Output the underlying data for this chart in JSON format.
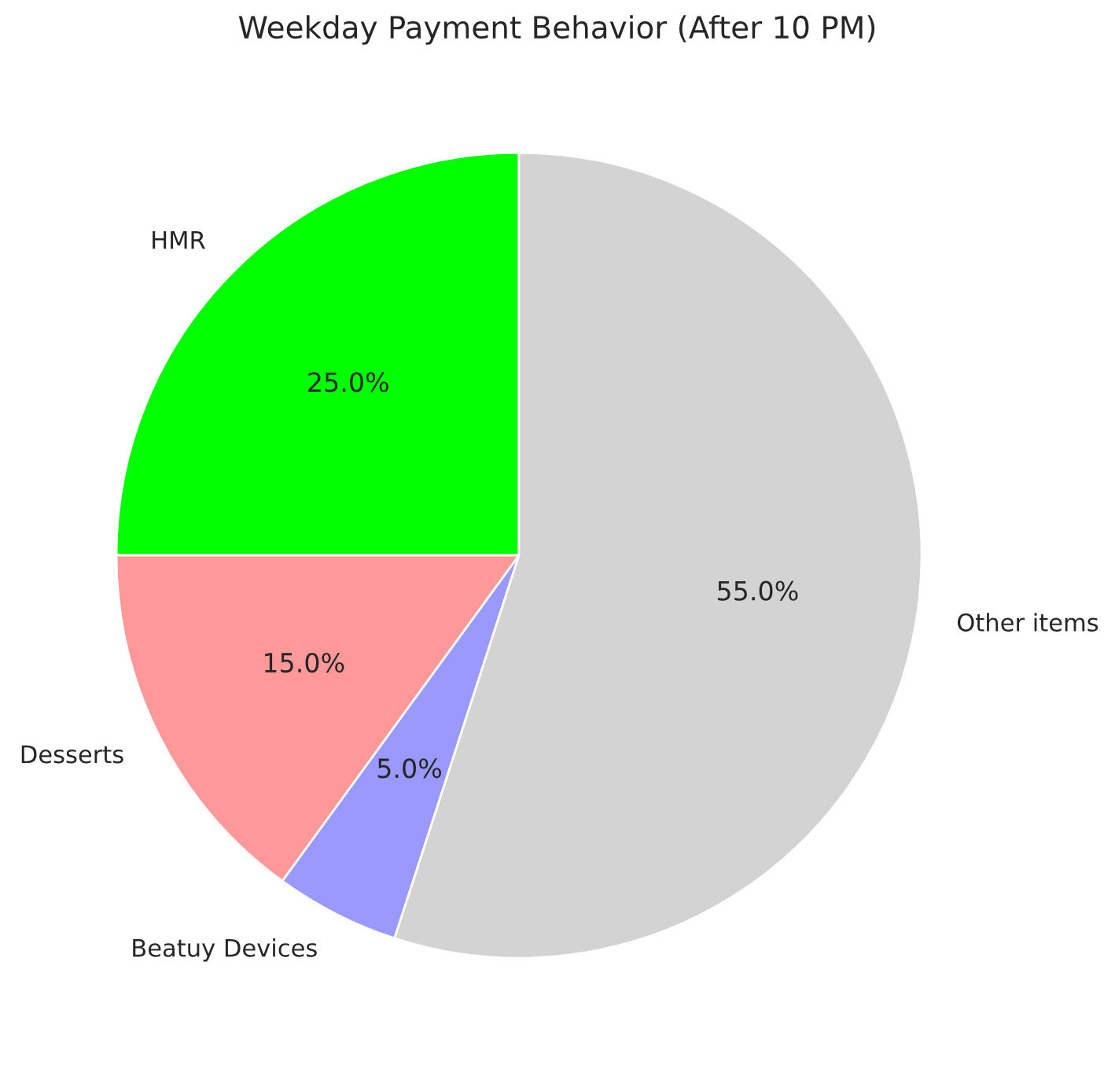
{
  "chart_data": {
    "type": "pie",
    "title": "Weekday Payment Behavior (After 10 PM)",
    "categories": [
      "HMR",
      "Desserts",
      "Beatuy Devices",
      "Other items"
    ],
    "values": [
      25,
      15,
      5,
      55
    ],
    "colors": [
      "#00ff00",
      "#ff9999",
      "#9999ff",
      "#d3d3d3"
    ],
    "value_labels": [
      "25.0%",
      "15.0%",
      "5.0%",
      "55.0%"
    ]
  }
}
